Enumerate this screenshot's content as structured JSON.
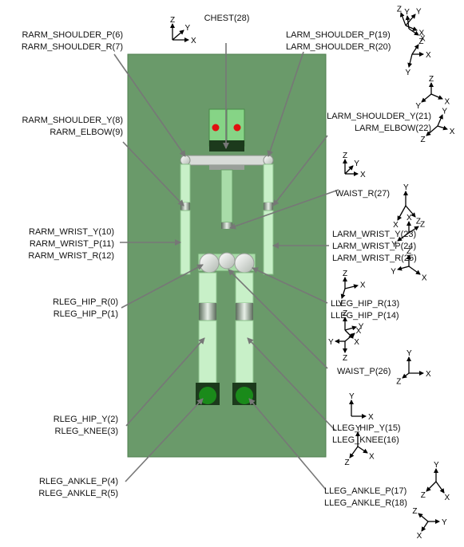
{
  "chest_label": "CHEST(28)",
  "right_labels": {
    "shoulder": [
      "RARM_SHOULDER_P(6)",
      "RARM_SHOULDER_R(7)"
    ],
    "elbow": [
      "RARM_SHOULDER_Y(8)",
      "RARM_ELBOW(9)"
    ],
    "wrist": [
      "RARM_WRIST_Y(10)",
      "RARM_WRIST_P(11)",
      "RARM_WRIST_R(12)"
    ],
    "hip": [
      "RLEG_HIP_R(0)",
      "RLEG_HIP_P(1)"
    ],
    "knee": [
      "RLEG_HIP_Y(2)",
      "RLEG_KNEE(3)"
    ],
    "ankle": [
      "RLEG_ANKLE_P(4)",
      "RLEG_ANKLE_R(5)"
    ]
  },
  "left_labels": {
    "shoulder": [
      "LARM_SHOULDER_P(19)",
      "LARM_SHOULDER_R(20)"
    ],
    "elbow": [
      "LARM_SHOULDER_Y(21)",
      "LARM_ELBOW(22)"
    ],
    "waist_r": "WAIST_R(27)",
    "wrist": [
      "LARM_WRIST_Y(23)",
      "LARM_WRIST_P(24)",
      "LARM_WRIST_R(25)"
    ],
    "hip": [
      "LLEG_HIP_R(13)",
      "LLEG_HIP_P(14)"
    ],
    "waist_p": "WAIST_P(26)",
    "knee": [
      "LLEG_HIP_Y(15)",
      "LLEG_KNEE(16)"
    ],
    "ankle": [
      "LLEG_ANKLE_P(17)",
      "LLEG_ANKLE_R(18)"
    ]
  },
  "axis_letters": {
    "x": "X",
    "y": "Y",
    "z": "Z"
  },
  "colors": {
    "background_panel": "#6a9a6a",
    "panel_border": "#4f7f4f",
    "robot_light_green": "#c8f0c8",
    "robot_mid_green": "#a8dca8",
    "head_green": "#86d486",
    "eye_red": "#e01010",
    "foot_green": "#1a8a1a",
    "leader_line": "#777777"
  }
}
